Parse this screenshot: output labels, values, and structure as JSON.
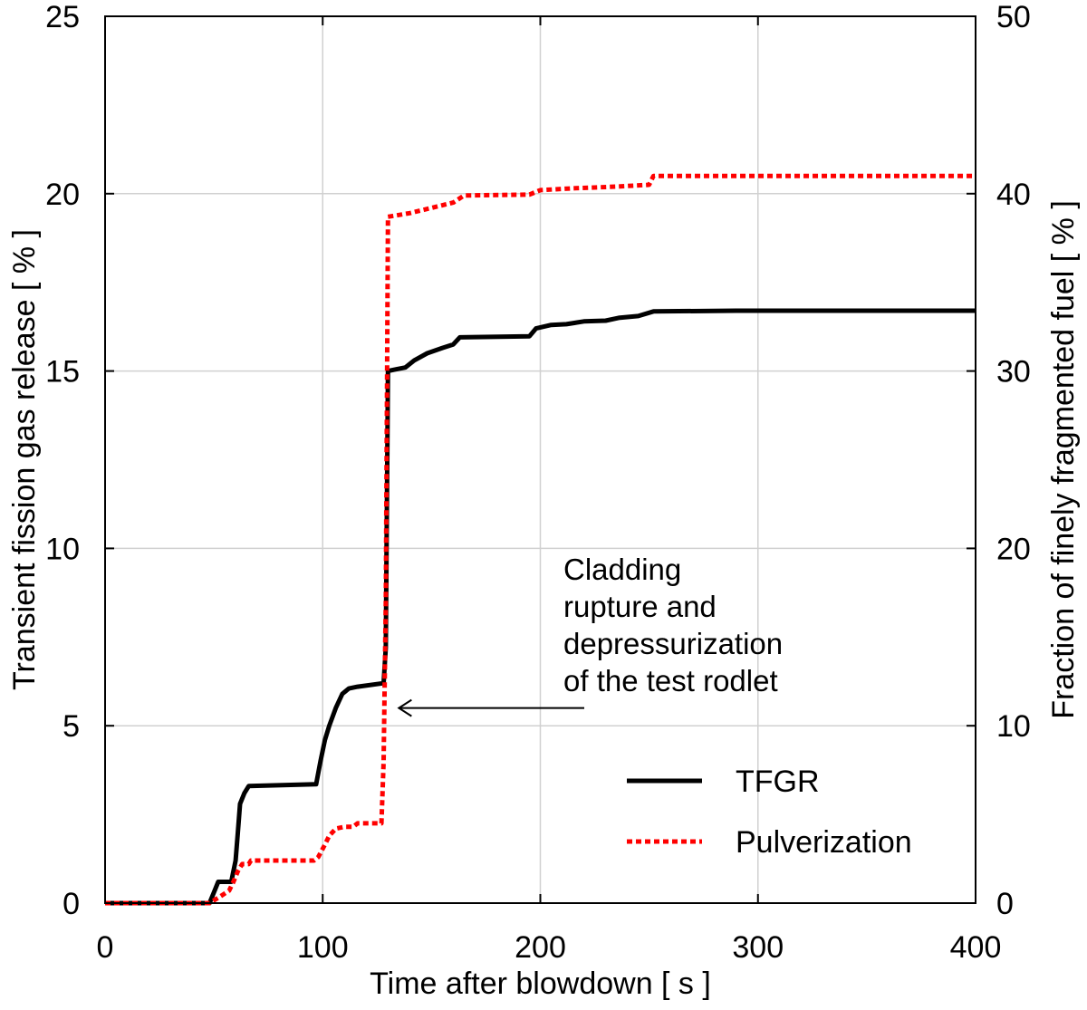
{
  "chart_data": {
    "type": "line",
    "xlabel": "Time after blowdown [ s ]",
    "ylabel_left": "Transient fission gas release [ % ]",
    "ylabel_right": "Fraction of finely fragmented fuel [ % ]",
    "xlim": [
      0,
      400
    ],
    "ylim_left": [
      0,
      25
    ],
    "ylim_right": [
      0,
      50
    ],
    "x_ticks": [
      "0",
      "100",
      "200",
      "300",
      "400"
    ],
    "y_ticks_left": [
      "0",
      "5",
      "10",
      "15",
      "20",
      "25"
    ],
    "y_ticks_right": [
      "0",
      "10",
      "20",
      "30",
      "40",
      "50"
    ],
    "grid": true,
    "legend_position": "lower-right",
    "annotation": {
      "lines": [
        "Cladding",
        "rupture and",
        "depressurization",
        "of the test rodlet"
      ],
      "arrow_target": {
        "x": 135,
        "y_left": 5.5
      }
    },
    "series": [
      {
        "name": "TFGR",
        "axis": "left",
        "color": "#000000",
        "style": "solid",
        "points": [
          [
            0,
            0
          ],
          [
            48,
            0
          ],
          [
            50,
            0.3
          ],
          [
            52,
            0.6
          ],
          [
            58,
            0.6
          ],
          [
            60,
            1.2
          ],
          [
            61,
            2.0
          ],
          [
            62,
            2.8
          ],
          [
            64,
            3.1
          ],
          [
            66,
            3.3
          ],
          [
            97,
            3.35
          ],
          [
            99,
            4.0
          ],
          [
            101,
            4.6
          ],
          [
            103,
            5.0
          ],
          [
            106,
            5.5
          ],
          [
            109,
            5.9
          ],
          [
            112,
            6.05
          ],
          [
            116,
            6.1
          ],
          [
            128,
            6.2
          ],
          [
            129,
            7.2
          ],
          [
            130,
            15.0
          ],
          [
            134,
            15.05
          ],
          [
            138,
            15.1
          ],
          [
            142,
            15.3
          ],
          [
            148,
            15.5
          ],
          [
            155,
            15.65
          ],
          [
            160,
            15.75
          ],
          [
            163,
            15.95
          ],
          [
            195,
            15.98
          ],
          [
            198,
            16.2
          ],
          [
            205,
            16.3
          ],
          [
            212,
            16.32
          ],
          [
            220,
            16.4
          ],
          [
            230,
            16.42
          ],
          [
            236,
            16.5
          ],
          [
            245,
            16.55
          ],
          [
            252,
            16.68
          ],
          [
            290,
            16.7
          ],
          [
            400,
            16.7
          ]
        ]
      },
      {
        "name": "Pulverization",
        "axis": "right",
        "color": "#ff0000",
        "style": "dotted",
        "points": [
          [
            0,
            0
          ],
          [
            48,
            0
          ],
          [
            52,
            0.3
          ],
          [
            57,
            0.7
          ],
          [
            59,
            1.2
          ],
          [
            61,
            1.8
          ],
          [
            63,
            2.2
          ],
          [
            66,
            2.2
          ],
          [
            67,
            2.4
          ],
          [
            96,
            2.4
          ],
          [
            98,
            2.6
          ],
          [
            101,
            3.3
          ],
          [
            103,
            3.8
          ],
          [
            106,
            4.2
          ],
          [
            110,
            4.3
          ],
          [
            114,
            4.3
          ],
          [
            116,
            4.5
          ],
          [
            127,
            4.5
          ],
          [
            128,
            8.0
          ],
          [
            129,
            17.0
          ],
          [
            130,
            38.7
          ],
          [
            140,
            38.9
          ],
          [
            150,
            39.2
          ],
          [
            160,
            39.5
          ],
          [
            165,
            39.9
          ],
          [
            195,
            39.95
          ],
          [
            200,
            40.2
          ],
          [
            215,
            40.3
          ],
          [
            235,
            40.4
          ],
          [
            250,
            40.5
          ],
          [
            252,
            41.0
          ],
          [
            400,
            41.0
          ]
        ]
      }
    ]
  }
}
